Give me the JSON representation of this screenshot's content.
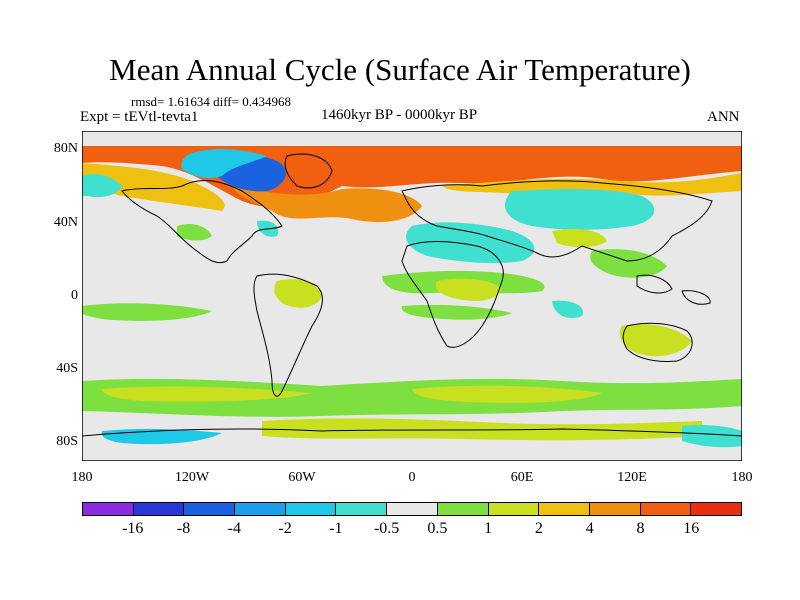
{
  "title": "Mean Annual Cycle (Surface Air Temperature)",
  "stats": "rmsd= 1.61634 diff= 0.434968",
  "experiment": "Expt = tEVtl-tevta1",
  "period": "1460kyr BP - 0000kyr BP",
  "season": "ANN",
  "y_ticks": [
    "80N",
    "40N",
    "0",
    "40S",
    "80S"
  ],
  "x_ticks": [
    "180",
    "120W",
    "60W",
    "0",
    "60E",
    "120E",
    "180"
  ],
  "colorbar": {
    "colors": [
      "#8a2be2",
      "#2a36d8",
      "#1a62e0",
      "#1aa0e8",
      "#20c8e8",
      "#40e0d0",
      "#e8e8e8",
      "#7ee040",
      "#c8e020",
      "#f0c010",
      "#f09010",
      "#f06010",
      "#e83010"
    ],
    "labels": [
      "-16",
      "-8",
      "-4",
      "-2",
      "-1",
      "-0.5",
      "0.5",
      "1",
      "2",
      "4",
      "8",
      "16"
    ]
  }
}
